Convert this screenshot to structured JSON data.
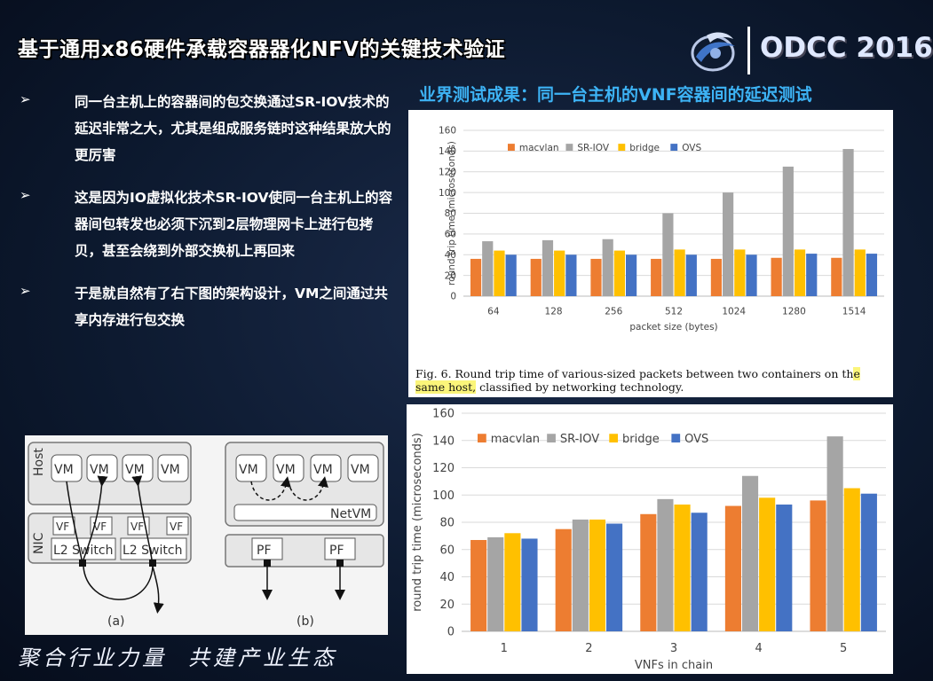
{
  "title": "基于通用x86硬件承载容器器化NFV的关键技术验证",
  "logo": {
    "text": "ODCC 2016"
  },
  "bullets": [
    {
      "marker": "➢",
      "text": "同一台主机上的容器间的包交换通过SR-IOV技术的延迟非常之大，尤其是组成服务链时这种结果放大的更厉害"
    },
    {
      "marker": "➢",
      "text": "这是因为IO虚拟化技术SR-IOV使同一台主机上的容器间包转发也必须下沉到2层物理网卡上进行包拷贝，甚至会绕到外部交换机上再回来"
    },
    {
      "marker": "➢",
      "text": "于是就自然有了右下图的架构设计，VM之间通过共享内存进行包交换"
    }
  ],
  "results_heading": "业界测试成果：同一台主机的VNF容器间的延迟测试",
  "caption": {
    "pre": "Fig. 6.    Round trip time of various-sized packets between two containers on th",
    "highlight": "e same host,",
    "post": " classified by networking technology."
  },
  "slogan": {
    "part1": "聚合行业力量",
    "part2": "共建产业生态"
  },
  "colors": {
    "macvlan": "#ed7d31",
    "sr_iov": "#a5a5a5",
    "bridge": "#ffc000",
    "ovs": "#4472c4"
  },
  "diagram": {
    "host_label": "Host",
    "nic_label": "NIC",
    "vm_label": "VM",
    "vf_label": "VF",
    "pf_label": "PF",
    "switch_label": "L2 Switch",
    "netvm_label": "NetVM",
    "a_label": "(a)",
    "b_label": "(b)"
  },
  "chart_data": [
    {
      "type": "bar",
      "categories": [
        "64",
        "128",
        "256",
        "512",
        "1024",
        "1280",
        "1514"
      ],
      "xlabel": "packet size (bytes)",
      "ylabel": "round trip time (microseconds)",
      "ylim": [
        0,
        160
      ],
      "yticks": [
        0,
        20,
        40,
        60,
        80,
        100,
        120,
        140,
        160
      ],
      "legend": "top-left",
      "series": [
        {
          "name": "macvlan",
          "values": [
            36,
            36,
            36,
            36,
            36,
            37,
            37
          ]
        },
        {
          "name": "SR-IOV",
          "values": [
            53,
            54,
            55,
            80,
            100,
            125,
            142
          ]
        },
        {
          "name": "bridge",
          "values": [
            44,
            44,
            44,
            45,
            45,
            45,
            45
          ]
        },
        {
          "name": "OVS",
          "values": [
            40,
            40,
            40,
            40,
            40,
            41,
            41
          ]
        }
      ]
    },
    {
      "type": "bar",
      "categories": [
        "1",
        "2",
        "3",
        "4",
        "5"
      ],
      "xlabel": "VNFs in chain",
      "ylabel": "round trip time (microseconds)",
      "ylim": [
        0,
        160
      ],
      "yticks": [
        0,
        20,
        40,
        60,
        80,
        100,
        120,
        140,
        160
      ],
      "legend": "top-left",
      "series": [
        {
          "name": "macvlan",
          "values": [
            67,
            75,
            86,
            92,
            96
          ]
        },
        {
          "name": "SR-IOV",
          "values": [
            69,
            82,
            97,
            114,
            143
          ]
        },
        {
          "name": "bridge",
          "values": [
            72,
            82,
            93,
            98,
            105
          ]
        },
        {
          "name": "OVS",
          "values": [
            68,
            79,
            87,
            93,
            101
          ]
        }
      ]
    }
  ]
}
